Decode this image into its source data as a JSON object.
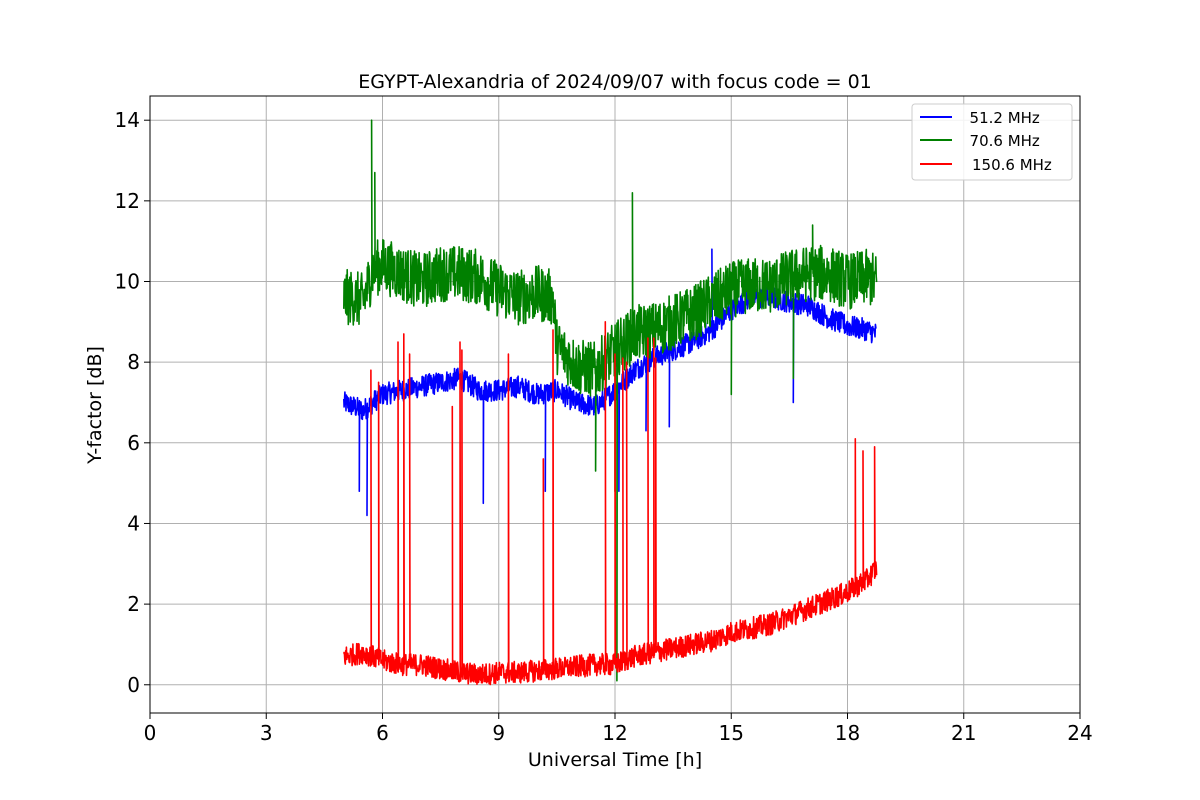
{
  "chart_data": {
    "type": "line",
    "title": "EGYPT-Alexandria of 2024/09/07 with focus code = 01",
    "xlabel": "Universal Time [h]",
    "ylabel": "Y-factor [dB]",
    "xlim": [
      0,
      24
    ],
    "ylim": [
      -0.7,
      14.6
    ],
    "xticks": [
      0,
      3,
      6,
      9,
      12,
      15,
      18,
      21,
      24
    ],
    "yticks": [
      0,
      2,
      4,
      6,
      8,
      10,
      12,
      14
    ],
    "grid": true,
    "legend_position": "top-right",
    "series": [
      {
        "name": "  51.2 MHz",
        "color": "#0000ff",
        "x": [
          5.0,
          5.25,
          5.5,
          5.75,
          6.0,
          6.5,
          7.0,
          7.5,
          8.0,
          8.5,
          9.0,
          9.5,
          10.0,
          10.5,
          11.0,
          11.5,
          12.0,
          12.5,
          13.0,
          13.5,
          14.0,
          14.5,
          15.0,
          15.5,
          16.0,
          16.5,
          17.0,
          17.5,
          18.0,
          18.5,
          18.75
        ],
        "y": [
          7.0,
          6.9,
          6.8,
          7.0,
          7.2,
          7.3,
          7.4,
          7.5,
          7.6,
          7.3,
          7.3,
          7.4,
          7.2,
          7.3,
          7.0,
          6.9,
          7.3,
          7.8,
          8.1,
          8.3,
          8.5,
          8.8,
          9.3,
          9.6,
          9.6,
          9.5,
          9.4,
          9.1,
          8.9,
          8.8,
          8.7
        ],
        "noise": 0.55,
        "spikes": [
          [
            5.4,
            4.8
          ],
          [
            5.6,
            4.2
          ],
          [
            8.6,
            4.5
          ],
          [
            10.2,
            4.8
          ],
          [
            12.1,
            4.8
          ],
          [
            12.8,
            6.3
          ],
          [
            13.4,
            6.4
          ],
          [
            16.6,
            7.0
          ],
          [
            14.5,
            10.8
          ]
        ]
      },
      {
        "name": "  70.6 MHz",
        "color": "#008000",
        "x": [
          5.0,
          5.25,
          5.5,
          5.75,
          6.0,
          6.5,
          7.0,
          7.5,
          8.0,
          8.5,
          9.0,
          9.5,
          10.0,
          10.4,
          10.5,
          11.0,
          11.5,
          12.0,
          12.5,
          13.0,
          13.5,
          14.0,
          14.5,
          15.0,
          15.5,
          16.0,
          16.5,
          17.0,
          17.5,
          18.0,
          18.5,
          18.75
        ],
        "y": [
          9.6,
          9.6,
          9.5,
          10.3,
          10.4,
          10.2,
          10.0,
          10.2,
          10.2,
          10.1,
          9.8,
          9.6,
          9.7,
          9.6,
          8.4,
          7.9,
          7.8,
          8.3,
          8.7,
          8.8,
          9.0,
          9.2,
          9.5,
          9.8,
          9.9,
          9.9,
          10.1,
          10.2,
          10.2,
          10.0,
          10.1,
          10.0
        ],
        "noise": 1.4,
        "spikes": [
          [
            5.72,
            14.0
          ],
          [
            5.8,
            12.7
          ],
          [
            12.45,
            12.2
          ],
          [
            11.5,
            5.3
          ],
          [
            12.0,
            4.8
          ],
          [
            15.0,
            7.2
          ],
          [
            16.6,
            7.6
          ],
          [
            17.1,
            11.4
          ],
          [
            12.05,
            0.1
          ]
        ]
      },
      {
        "name": "150.6 MHz",
        "color": "#ff0000",
        "x": [
          5.0,
          5.5,
          6.0,
          6.5,
          7.0,
          7.5,
          8.0,
          8.5,
          9.0,
          9.5,
          10.0,
          10.5,
          11.0,
          11.5,
          12.0,
          12.5,
          13.0,
          13.5,
          14.0,
          14.5,
          15.0,
          15.5,
          16.0,
          16.5,
          17.0,
          17.5,
          18.0,
          18.5,
          18.75
        ],
        "y": [
          0.7,
          0.8,
          0.6,
          0.5,
          0.5,
          0.4,
          0.3,
          0.25,
          0.3,
          0.3,
          0.35,
          0.4,
          0.45,
          0.5,
          0.5,
          0.7,
          0.8,
          0.9,
          1.0,
          1.1,
          1.3,
          1.4,
          1.5,
          1.7,
          1.9,
          2.1,
          2.3,
          2.6,
          2.9
        ],
        "noise": 0.55,
        "spikes": [
          [
            5.7,
            7.8
          ],
          [
            5.9,
            7.5
          ],
          [
            6.4,
            8.5
          ],
          [
            6.55,
            8.7
          ],
          [
            6.7,
            8.2
          ],
          [
            7.8,
            6.9
          ],
          [
            8.0,
            8.5
          ],
          [
            8.05,
            8.3
          ],
          [
            9.25,
            8.2
          ],
          [
            10.15,
            5.6
          ],
          [
            10.4,
            8.8
          ],
          [
            11.75,
            9.0
          ],
          [
            12.0,
            8.2
          ],
          [
            12.2,
            8.1
          ],
          [
            12.3,
            8.0
          ],
          [
            12.85,
            8.6
          ],
          [
            13.0,
            8.6
          ],
          [
            13.05,
            8.1
          ],
          [
            18.2,
            6.1
          ],
          [
            18.4,
            5.8
          ],
          [
            18.7,
            5.9
          ]
        ]
      }
    ]
  }
}
